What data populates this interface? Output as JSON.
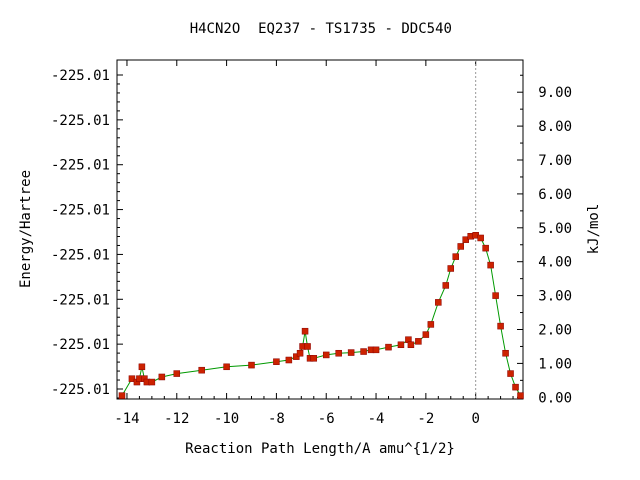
{
  "chart_data": {
    "type": "scatter",
    "title_parts": [
      "H4CN2O",
      "EQ237 - TS1735 - DDC540"
    ],
    "xlabel": "Reaction Path Length/A amu^{1/2}",
    "ylabel": "Energy/Hartree",
    "y2label": "kJ/mol",
    "xlim": [
      -14.4,
      1.9
    ],
    "y2lim": [
      -0.05,
      9.95
    ],
    "x_ticks": [
      -14,
      -12,
      -10,
      -8,
      -6,
      -4,
      -2,
      0
    ],
    "x_tick_labels": [
      "-14",
      "-12",
      "-10",
      "-8",
      "-6",
      "-4",
      "-2",
      "0"
    ],
    "y_left_tick_labels": [
      "-225.01",
      "-225.01",
      "-225.01",
      "-225.01",
      "-225.01",
      "-225.01",
      "-225.01",
      "-225.01"
    ],
    "y_right_ticks": [
      0,
      1,
      2,
      3,
      4,
      5,
      6,
      7,
      8,
      9
    ],
    "y_right_tick_labels": [
      "0.00",
      "1.00",
      "2.00",
      "3.00",
      "4.00",
      "5.00",
      "6.00",
      "7.00",
      "8.00",
      "9.00"
    ],
    "ts_line_x": 0,
    "grid": false,
    "colors": {
      "marker": "#cc2200",
      "line": "#009900",
      "ts_line": "#999999"
    },
    "series": [
      {
        "x": [
          -14.2,
          -13.8,
          -13.6,
          -13.5,
          -13.4,
          -13.3,
          -13.2,
          -13.0,
          -12.6,
          -12.0,
          -11.0,
          -10.0,
          -9.0,
          -8.0,
          -7.5,
          -7.2,
          -7.05,
          -6.95,
          -6.85,
          -6.75,
          -6.65,
          -6.5,
          -6.0,
          -5.5,
          -5.0,
          -4.5,
          -4.2,
          -4.0,
          -3.5,
          -3.0,
          -2.7,
          -2.6,
          -2.3,
          -2.0,
          -1.8,
          -1.5,
          -1.2,
          -1.0,
          -0.8,
          -0.6,
          -0.4,
          -0.2,
          0.0,
          0.2,
          0.4,
          0.6,
          0.8,
          1.0,
          1.2,
          1.4,
          1.6,
          1.8
        ],
        "y": [
          0.05,
          0.55,
          0.45,
          0.55,
          0.9,
          0.55,
          0.45,
          0.45,
          0.6,
          0.7,
          0.8,
          0.9,
          0.95,
          1.05,
          1.1,
          1.2,
          1.3,
          1.5,
          1.95,
          1.5,
          1.15,
          1.15,
          1.25,
          1.3,
          1.32,
          1.35,
          1.4,
          1.4,
          1.48,
          1.55,
          1.7,
          1.55,
          1.65,
          1.85,
          2.15,
          2.8,
          3.3,
          3.8,
          4.15,
          4.45,
          4.65,
          4.75,
          4.78,
          4.7,
          4.4,
          3.9,
          3.0,
          2.1,
          1.3,
          0.7,
          0.3,
          0.05
        ]
      }
    ]
  }
}
